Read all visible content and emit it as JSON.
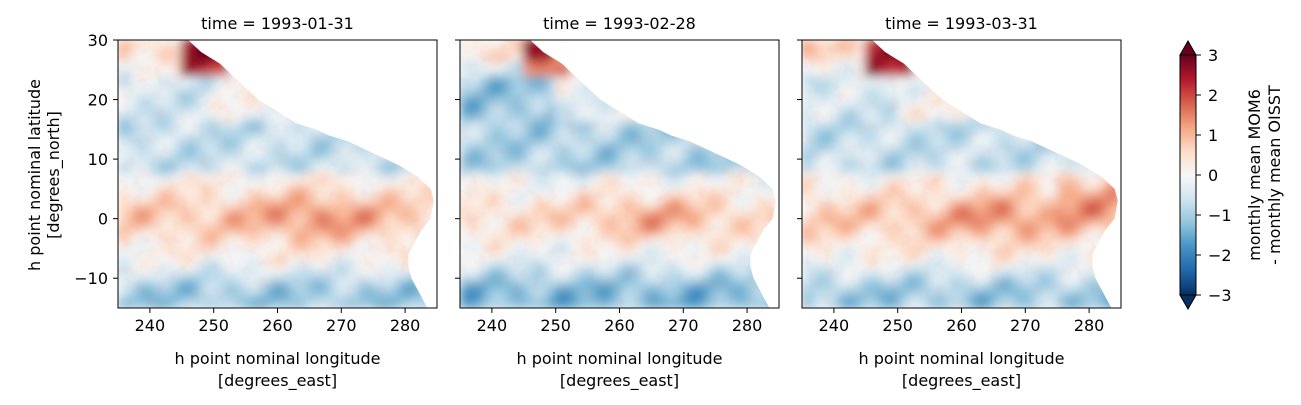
{
  "chart_data": {
    "type": "heatmap",
    "facet_by": "time",
    "panels": [
      {
        "title": "time = 1993-01-31"
      },
      {
        "title": "time = 1993-02-28"
      },
      {
        "title": "time = 1993-03-31"
      }
    ],
    "xlabel": "h point nominal longitude\n[degrees_east]",
    "ylabel": "h point nominal latitude\n[degrees_north]",
    "x_ticks": [
      240,
      250,
      260,
      270,
      280
    ],
    "y_ticks": [
      30,
      20,
      10,
      0,
      -10
    ],
    "x_tick_labels": [
      "240",
      "250",
      "260",
      "270",
      "280"
    ],
    "y_tick_labels": [
      "30",
      "20",
      "10",
      "0",
      "−10"
    ],
    "xlim": [
      235,
      285
    ],
    "ylim": [
      -15,
      30
    ],
    "colorbar": {
      "label": "monthly mean MOM6\n- monthly mean OISST",
      "colormap": "RdBu_r",
      "vmin": -3,
      "vmax": 3,
      "extend": "both",
      "ticks": [
        3,
        2,
        1,
        0,
        -1,
        -2,
        -3
      ],
      "tick_labels": [
        "3",
        "2",
        "1",
        "0",
        "−1",
        "−2",
        "−3"
      ]
    }
  }
}
